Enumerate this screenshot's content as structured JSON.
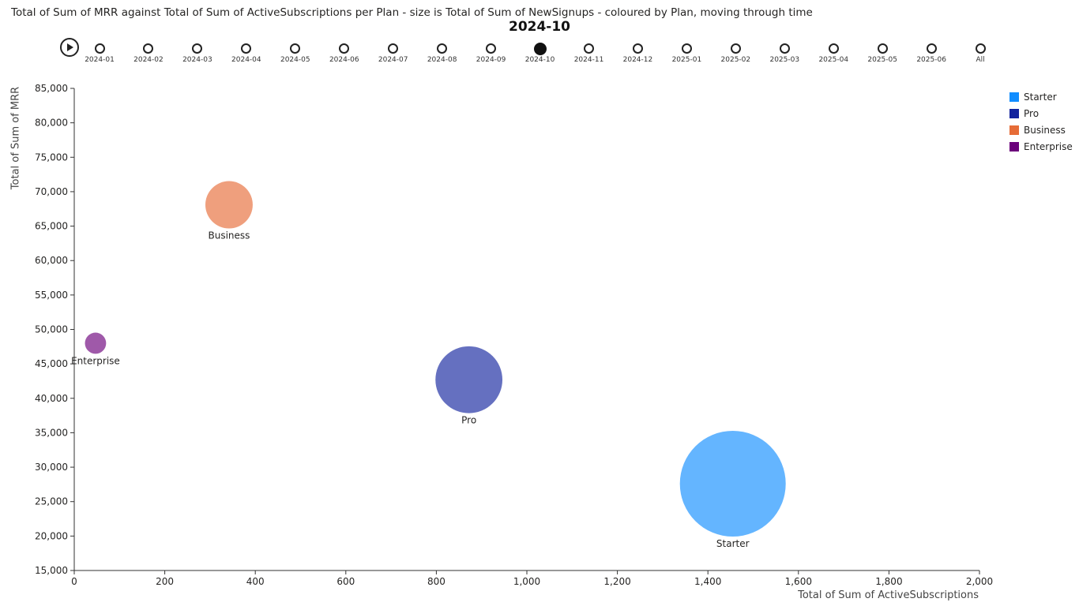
{
  "chart_data": {
    "type": "scatter",
    "title": "Total of Sum of MRR against Total of Sum of ActiveSubscriptions per Plan - size is Total of Sum of NewSignups - coloured by Plan, moving through time",
    "current_frame": "2024-10",
    "frames": [
      "2024-01",
      "2024-02",
      "2024-03",
      "2024-04",
      "2024-05",
      "2024-06",
      "2024-07",
      "2024-08",
      "2024-09",
      "2024-10",
      "2024-11",
      "2024-12",
      "2025-01",
      "2025-02",
      "2025-03",
      "2025-04",
      "2025-05",
      "2025-06",
      "All"
    ],
    "xlabel": "Total of Sum of ActiveSubscriptions",
    "ylabel": "Total of Sum of MRR",
    "xlim": [
      0,
      2000
    ],
    "ylim": [
      15000,
      85000
    ],
    "x_ticks": [
      0,
      200,
      400,
      600,
      800,
      1000,
      1200,
      1400,
      1600,
      1800,
      2000
    ],
    "x_tick_labels": [
      "0",
      "200",
      "400",
      "600",
      "800",
      "1,000",
      "1,200",
      "1,400",
      "1,600",
      "1,800",
      "2,000"
    ],
    "y_ticks": [
      15000,
      20000,
      25000,
      30000,
      35000,
      40000,
      45000,
      50000,
      55000,
      60000,
      65000,
      70000,
      75000,
      80000,
      85000
    ],
    "y_tick_labels": [
      "15,000",
      "20,000",
      "25,000",
      "30,000",
      "35,000",
      "40,000",
      "45,000",
      "50,000",
      "55,000",
      "60,000",
      "65,000",
      "70,000",
      "75,000",
      "80,000",
      "85,000"
    ],
    "grid": false,
    "legend_position": "right",
    "series": [
      {
        "name": "Starter",
        "color": "#118DFF",
        "x": 1455,
        "y": 27600,
        "size": 100
      },
      {
        "name": "Pro",
        "color": "#12239E",
        "x": 872,
        "y": 42700,
        "size": 40
      },
      {
        "name": "Business",
        "color": "#E66C37",
        "x": 342,
        "y": 68100,
        "size": 20
      },
      {
        "name": "Enterprise",
        "color": "#6B007B",
        "x": 47,
        "y": 48000,
        "size": 4
      }
    ]
  }
}
